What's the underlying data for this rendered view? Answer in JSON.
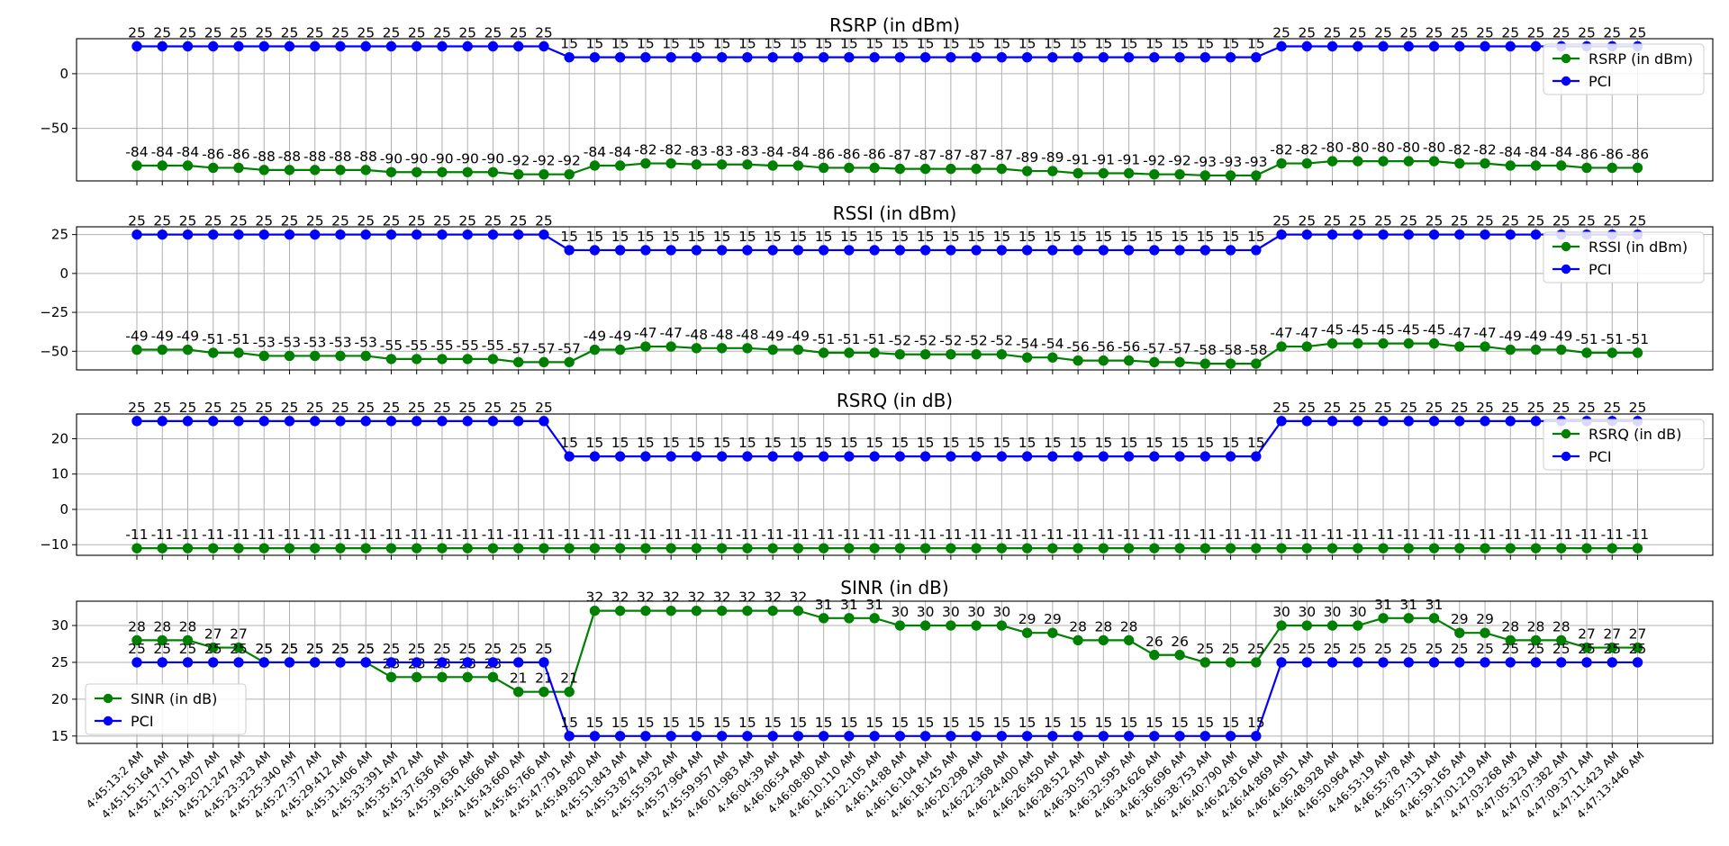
{
  "x_labels": [
    "4:45:13:2 AM",
    "4:45:15:164 AM",
    "4:45:17:171 AM",
    "4:45:19:207 AM",
    "4:45:21:247 AM",
    "4:45:23:323 AM",
    "4:45:25:340 AM",
    "4:45:27:377 AM",
    "4:45:29:412 AM",
    "4:45:31:406 AM",
    "4:45:33:391 AM",
    "4:45:35:472 AM",
    "4:45:37:636 AM",
    "4:45:39:636 AM",
    "4:45:41:666 AM",
    "4:45:43:660 AM",
    "4:45:45:766 AM",
    "4:45:47:791 AM",
    "4:45:49:820 AM",
    "4:45:51:843 AM",
    "4:45:53:874 AM",
    "4:45:55:932 AM",
    "4:45:57:964 AM",
    "4:45:59:957 AM",
    "4:46:01:983 AM",
    "4:46:04:39 AM",
    "4:46:06:54 AM",
    "4:46:08:80 AM",
    "4:46:10:110 AM",
    "4:46:12:105 AM",
    "4:46:14:88 AM",
    "4:46:16:104 AM",
    "4:46:18:145 AM",
    "4:46:20:298 AM",
    "4:46:22:368 AM",
    "4:46:24:400 AM",
    "4:46:26:450 AM",
    "4:46:28:512 AM",
    "4:46:30:570 AM",
    "4:46:32:595 AM",
    "4:46:34:626 AM",
    "4:46:36:696 AM",
    "4:46:38:753 AM",
    "4:46:40:790 AM",
    "4:46:42:816 AM",
    "4:46:44:869 AM",
    "4:46:46:951 AM",
    "4:46:48:928 AM",
    "4:46:50:964 AM",
    "4:46:53:19 AM",
    "4:46:55:78 AM",
    "4:46:57:131 AM",
    "4:46:59:165 AM",
    "4:47:01:219 AM",
    "4:47:03:268 AM",
    "4:47:05:323 AM",
    "4:47:07:382 AM",
    "4:47:09:371 AM",
    "4:47:11:423 AM",
    "4:47:13:446 AM"
  ],
  "colors": {
    "metric": "#008000",
    "pci": "#0000ff",
    "grid": "#b0b0b0"
  },
  "chart_data": [
    {
      "type": "line",
      "title": "RSRP (in dBm)",
      "ylim": [
        -98,
        32
      ],
      "yticks": [
        0,
        -50
      ],
      "grid": true,
      "legend": "top-right",
      "series": [
        {
          "name": "RSRP (in dBm)",
          "color": "#008000",
          "values": [
            -84,
            -84,
            -84,
            -86,
            -86,
            -88,
            -88,
            -88,
            -88,
            -88,
            -90,
            -90,
            -90,
            -90,
            -90,
            -92,
            -92,
            -92,
            -84,
            -84,
            -82,
            -82,
            -83,
            -83,
            -83,
            -84,
            -84,
            -86,
            -86,
            -86,
            -87,
            -87,
            -87,
            -87,
            -87,
            -89,
            -89,
            -91,
            -91,
            -91,
            -92,
            -92,
            -93,
            -93,
            -93,
            -82,
            -82,
            -80,
            -80,
            -80,
            -80,
            -80,
            -82,
            -82,
            -84,
            -84,
            -84,
            -86,
            -86,
            -86
          ]
        },
        {
          "name": "PCI",
          "color": "#0000ff",
          "values": [
            25,
            25,
            25,
            25,
            25,
            25,
            25,
            25,
            25,
            25,
            25,
            25,
            25,
            25,
            25,
            25,
            25,
            15,
            15,
            15,
            15,
            15,
            15,
            15,
            15,
            15,
            15,
            15,
            15,
            15,
            15,
            15,
            15,
            15,
            15,
            15,
            15,
            15,
            15,
            15,
            15,
            15,
            15,
            15,
            15,
            25,
            25,
            25,
            25,
            25,
            25,
            25,
            25,
            25,
            25,
            25,
            25,
            25,
            25,
            25
          ]
        }
      ]
    },
    {
      "type": "line",
      "title": "RSSI (in dBm)",
      "ylim": [
        -62,
        30
      ],
      "yticks": [
        25,
        0,
        -25,
        -50
      ],
      "grid": true,
      "legend": "top-right",
      "series": [
        {
          "name": "RSSI (in dBm)",
          "color": "#008000",
          "values": [
            -49,
            -49,
            -49,
            -51,
            -51,
            -53,
            -53,
            -53,
            -53,
            -53,
            -55,
            -55,
            -55,
            -55,
            -55,
            -57,
            -57,
            -57,
            -49,
            -49,
            -47,
            -47,
            -48,
            -48,
            -48,
            -49,
            -49,
            -51,
            -51,
            -51,
            -52,
            -52,
            -52,
            -52,
            -52,
            -54,
            -54,
            -56,
            -56,
            -56,
            -57,
            -57,
            -58,
            -58,
            -58,
            -47,
            -47,
            -45,
            -45,
            -45,
            -45,
            -45,
            -47,
            -47,
            -49,
            -49,
            -49,
            -51,
            -51,
            -51
          ]
        },
        {
          "name": "PCI",
          "color": "#0000ff",
          "values": [
            25,
            25,
            25,
            25,
            25,
            25,
            25,
            25,
            25,
            25,
            25,
            25,
            25,
            25,
            25,
            25,
            25,
            15,
            15,
            15,
            15,
            15,
            15,
            15,
            15,
            15,
            15,
            15,
            15,
            15,
            15,
            15,
            15,
            15,
            15,
            15,
            15,
            15,
            15,
            15,
            15,
            15,
            15,
            15,
            15,
            25,
            25,
            25,
            25,
            25,
            25,
            25,
            25,
            25,
            25,
            25,
            25,
            25,
            25,
            25
          ]
        }
      ]
    },
    {
      "type": "line",
      "title": "RSRQ (in dB)",
      "ylim": [
        -13,
        27
      ],
      "yticks": [
        20,
        10,
        0,
        -10
      ],
      "grid": true,
      "legend": "top-right",
      "series": [
        {
          "name": "RSRQ (in dB)",
          "color": "#008000",
          "values": [
            -11,
            -11,
            -11,
            -11,
            -11,
            -11,
            -11,
            -11,
            -11,
            -11,
            -11,
            -11,
            -11,
            -11,
            -11,
            -11,
            -11,
            -11,
            -11,
            -11,
            -11,
            -11,
            -11,
            -11,
            -11,
            -11,
            -11,
            -11,
            -11,
            -11,
            -11,
            -11,
            -11,
            -11,
            -11,
            -11,
            -11,
            -11,
            -11,
            -11,
            -11,
            -11,
            -11,
            -11,
            -11,
            -11,
            -11,
            -11,
            -11,
            -11,
            -11,
            -11,
            -11,
            -11,
            -11,
            -11,
            -11,
            -11,
            -11,
            -11
          ]
        },
        {
          "name": "PCI",
          "color": "#0000ff",
          "values": [
            25,
            25,
            25,
            25,
            25,
            25,
            25,
            25,
            25,
            25,
            25,
            25,
            25,
            25,
            25,
            25,
            25,
            15,
            15,
            15,
            15,
            15,
            15,
            15,
            15,
            15,
            15,
            15,
            15,
            15,
            15,
            15,
            15,
            15,
            15,
            15,
            15,
            15,
            15,
            15,
            15,
            15,
            15,
            15,
            15,
            25,
            25,
            25,
            25,
            25,
            25,
            25,
            25,
            25,
            25,
            25,
            25,
            25,
            25,
            25
          ]
        }
      ]
    },
    {
      "type": "line",
      "title": "SINR (in dB)",
      "ylim": [
        14,
        33.3
      ],
      "yticks": [
        30,
        25,
        20,
        15
      ],
      "grid": true,
      "legend": "lower-left",
      "series": [
        {
          "name": "SINR (in dB)",
          "color": "#008000",
          "values": [
            28,
            28,
            28,
            27,
            27,
            25,
            25,
            25,
            25,
            25,
            23,
            23,
            23,
            23,
            23,
            21,
            21,
            21,
            32,
            32,
            32,
            32,
            32,
            32,
            32,
            32,
            32,
            31,
            31,
            31,
            30,
            30,
            30,
            30,
            30,
            29,
            29,
            28,
            28,
            28,
            26,
            26,
            25,
            25,
            25,
            30,
            30,
            30,
            30,
            31,
            31,
            31,
            29,
            29,
            28,
            28,
            28,
            27,
            27,
            27
          ]
        },
        {
          "name": "PCI",
          "color": "#0000ff",
          "values": [
            25,
            25,
            25,
            25,
            25,
            25,
            25,
            25,
            25,
            25,
            25,
            25,
            25,
            25,
            25,
            25,
            25,
            15,
            15,
            15,
            15,
            15,
            15,
            15,
            15,
            15,
            15,
            15,
            15,
            15,
            15,
            15,
            15,
            15,
            15,
            15,
            15,
            15,
            15,
            15,
            15,
            15,
            15,
            15,
            15,
            25,
            25,
            25,
            25,
            25,
            25,
            25,
            25,
            25,
            25,
            25,
            25,
            25,
            25,
            25
          ]
        }
      ]
    }
  ]
}
